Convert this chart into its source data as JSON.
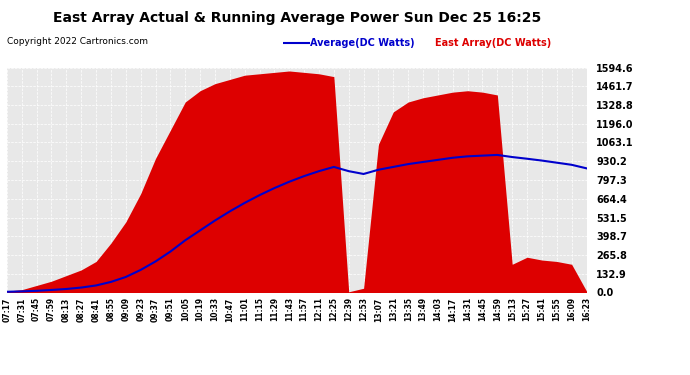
{
  "title": "East Array Actual & Running Average Power Sun Dec 25 16:25",
  "copyright": "Copyright 2022 Cartronics.com",
  "legend_avg": "Average(DC Watts)",
  "legend_east": "East Array(DC Watts)",
  "ylabel_values": [
    0.0,
    132.9,
    265.8,
    398.7,
    531.5,
    664.4,
    797.3,
    930.2,
    1063.1,
    1196.0,
    1328.8,
    1461.7,
    1594.6
  ],
  "ymax": 1594.6,
  "ymin": 0.0,
  "xtick_labels": [
    "07:17",
    "07:31",
    "07:45",
    "07:59",
    "08:13",
    "08:27",
    "08:41",
    "08:55",
    "09:09",
    "09:23",
    "09:37",
    "09:51",
    "10:05",
    "10:19",
    "10:33",
    "10:47",
    "11:01",
    "11:15",
    "11:29",
    "11:43",
    "11:57",
    "12:11",
    "12:25",
    "12:39",
    "12:53",
    "13:07",
    "13:21",
    "13:35",
    "13:49",
    "14:03",
    "14:17",
    "14:31",
    "14:45",
    "14:59",
    "15:13",
    "15:27",
    "15:41",
    "15:55",
    "16:09",
    "16:23"
  ],
  "east_data": [
    10,
    20,
    50,
    80,
    120,
    160,
    220,
    350,
    500,
    700,
    950,
    1150,
    1350,
    1430,
    1480,
    1510,
    1540,
    1550,
    1560,
    1570,
    1560,
    1550,
    1530,
    5,
    30,
    1050,
    1280,
    1350,
    1380,
    1400,
    1420,
    1430,
    1420,
    1400,
    200,
    250,
    230,
    220,
    200,
    10
  ],
  "avg_data": [
    5,
    8,
    12,
    18,
    25,
    35,
    50,
    75,
    110,
    160,
    220,
    290,
    370,
    440,
    510,
    575,
    635,
    690,
    740,
    785,
    825,
    860,
    890,
    860,
    840,
    870,
    890,
    910,
    925,
    940,
    955,
    965,
    970,
    975,
    960,
    948,
    935,
    920,
    905,
    880
  ],
  "area_color": "#dd0000",
  "line_color": "#0000cc",
  "background_color": "#ffffff",
  "plot_bg_color": "#e8e8e8",
  "grid_color": "#ffffff",
  "title_color": "#000000",
  "copyright_color": "#000000",
  "legend_avg_color": "#0000cc",
  "legend_east_color": "#dd0000"
}
